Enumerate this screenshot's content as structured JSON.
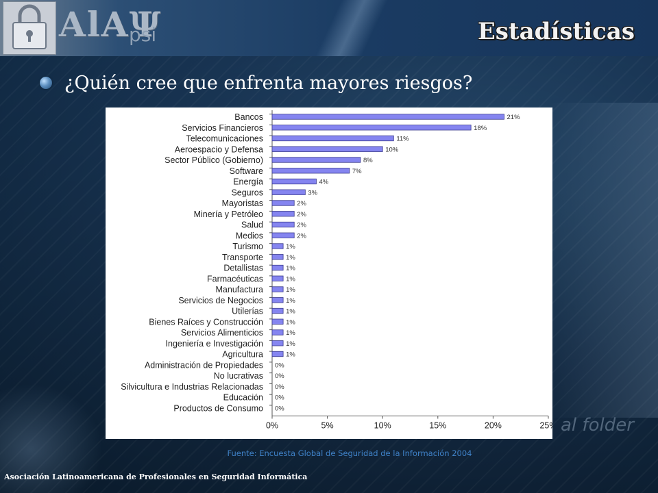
{
  "header": {
    "logo_text": "AlAΨ",
    "logo_sub": "psi",
    "title": "Estadísticas"
  },
  "main": {
    "question": "¿Quién cree que enfrenta mayores riesgos?",
    "source": "Fuente: Encuesta Global de Seguridad de la Información 2004"
  },
  "footer": {
    "organization": "Asociación Latinoamericana de Profesionales en Seguridad Informática"
  },
  "background": {
    "watermark_text": "al folder"
  },
  "colors": {
    "bar_fill": "#8585f0",
    "bar_stroke": "#3b3b8c",
    "title_text": "#f2f2f2",
    "source_text": "#3f82c8"
  },
  "chart_data": {
    "type": "bar",
    "orientation": "horizontal",
    "categories": [
      "Bancos",
      "Servicios Financieros",
      "Telecomunicaciones",
      "Aeroespacio y Defensa",
      "Sector Público (Gobierno)",
      "Software",
      "Energía",
      "Seguros",
      "Mayoristas",
      "Minería y Petróleo",
      "Salud",
      "Medios",
      "Turismo",
      "Transporte",
      "Detallistas",
      "Farmacéuticas",
      "Manufactura",
      "Servicios de Negocios",
      "Utilerías",
      "Bienes Raíces y Construcción",
      "Servicios Alimenticios",
      "Ingeniería e Investigación",
      "Agricultura",
      "Administración de Propiedades",
      "No lucrativas",
      "Silvicultura e Industrias Relacionadas",
      "Educación",
      "Productos de Consumo"
    ],
    "values": [
      21,
      18,
      11,
      10,
      8,
      7,
      4,
      3,
      2,
      2,
      2,
      2,
      1,
      1,
      1,
      1,
      1,
      1,
      1,
      1,
      1,
      1,
      1,
      0,
      0,
      0,
      0,
      0
    ],
    "labels": [
      "21%",
      "18%",
      "11%",
      "10%",
      "8%",
      "7%",
      "4%",
      "3%",
      "2%",
      "2%",
      "2%",
      "2%",
      "1%",
      "1%",
      "1%",
      "1%",
      "1%",
      "1%",
      "1%",
      "1%",
      "1%",
      "1%",
      "1%",
      "0%",
      "0%",
      "0%",
      "0%",
      "0%"
    ],
    "xticks": [
      "0%",
      "5%",
      "10%",
      "15%",
      "20%",
      "25%"
    ],
    "xlim": [
      0,
      25
    ],
    "title": "",
    "xlabel": "",
    "ylabel": "",
    "grid": false,
    "legend": "none"
  }
}
